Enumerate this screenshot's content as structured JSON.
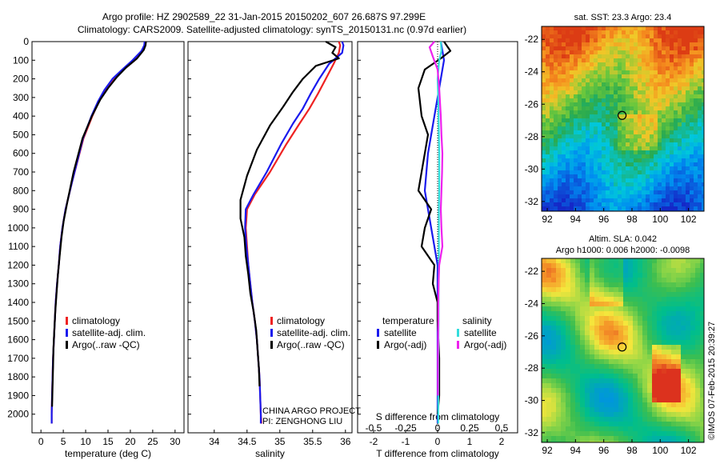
{
  "header": {
    "line1": "Argo profile: HZ 2902589_22 31-Jan-2015 20150202_607 26.687S 97.299E",
    "line2": "Climatology: CARS2009. Satellite-adjusted climatology: synTS_20150131.nc (0.97d earlier)"
  },
  "project": {
    "line1": "CHINA ARGO PROJECT",
    "line2": "PI: ZENGHONG LIU"
  },
  "credit": "©IMOS 07-Feb-2015 20:39:27",
  "colors": {
    "climatology": "#ee2222",
    "satellite": "#1a1aee",
    "argo": "#000000",
    "sal_satellite": "#33dddd",
    "sal_argo": "#ee22ee"
  },
  "chart_data": [
    {
      "type": "line",
      "xlabel": "temperature (deg C)",
      "ylabel": "",
      "xlim": [
        -2,
        32
      ],
      "ylim": [
        2100,
        0
      ],
      "xticks": [
        0,
        5,
        10,
        15,
        20,
        25,
        30
      ],
      "yticks": [
        0,
        100,
        200,
        300,
        400,
        500,
        600,
        700,
        800,
        900,
        1000,
        1100,
        1200,
        1300,
        1400,
        1500,
        1600,
        1700,
        1800,
        1900,
        2000
      ],
      "legend": [
        "climatology",
        "satellite-adj. clim.",
        "Argo(..raw -QC)"
      ],
      "series": [
        {
          "name": "climatology",
          "color": "#ee2222",
          "x": [
            23.4,
            23.3,
            22.8,
            21.0,
            18.5,
            16.5,
            14.6,
            13.0,
            11.5,
            9.5,
            7.0,
            5.5,
            4.8,
            4.3,
            4.0,
            3.6,
            3.3,
            3.1,
            2.9,
            2.7,
            2.6,
            2.5,
            2.4,
            2.4
          ],
          "y": [
            0,
            20,
            50,
            100,
            150,
            200,
            260,
            320,
            400,
            520,
            750,
            900,
            1000,
            1100,
            1200,
            1300,
            1400,
            1500,
            1600,
            1700,
            1800,
            1900,
            2000,
            2050
          ]
        },
        {
          "name": "satellite-adj. clim.",
          "color": "#1a1aee",
          "x": [
            23.2,
            23.1,
            22.5,
            20.5,
            18.2,
            16.0,
            14.2,
            12.8,
            11.3,
            9.4,
            7.0,
            5.5,
            4.8,
            4.3,
            4.0,
            3.6,
            3.3,
            3.1,
            2.9,
            2.7,
            2.6,
            2.5,
            2.4,
            2.4
          ],
          "y": [
            0,
            20,
            50,
            100,
            150,
            200,
            260,
            320,
            400,
            520,
            750,
            900,
            1000,
            1100,
            1200,
            1300,
            1400,
            1500,
            1600,
            1700,
            1800,
            1900,
            2000,
            2050
          ]
        },
        {
          "name": "Argo(..raw -QC)",
          "color": "#000000",
          "x": [
            23.5,
            23.4,
            23.0,
            21.5,
            19.0,
            17.0,
            15.0,
            13.3,
            11.4,
            9.3,
            7.3,
            6.0,
            5.1,
            4.6,
            4.2,
            3.8,
            3.5,
            3.2,
            3.0,
            2.8,
            2.7,
            2.6,
            2.5
          ],
          "y": [
            0,
            20,
            45,
            90,
            140,
            190,
            250,
            310,
            400,
            520,
            700,
            850,
            960,
            1050,
            1150,
            1250,
            1350,
            1450,
            1550,
            1650,
            1750,
            1850,
            1960
          ]
        }
      ]
    },
    {
      "type": "line",
      "xlabel": "salinity",
      "ylabel": "",
      "xlim": [
        33.6,
        36.1
      ],
      "ylim": [
        2100,
        0
      ],
      "xticks": [
        34,
        34.5,
        35,
        35.5,
        36
      ],
      "yticks": [],
      "legend": [
        "climatology",
        "satellite-adj. clim.",
        "Argo(..raw -QC)"
      ],
      "series": [
        {
          "name": "climatology",
          "color": "#ee2222",
          "x": [
            35.9,
            35.92,
            35.9,
            35.82,
            35.7,
            35.58,
            35.45,
            35.3,
            35.1,
            34.85,
            34.62,
            34.5,
            34.48,
            34.5,
            34.52,
            34.55,
            34.58,
            34.62,
            34.65,
            34.67,
            34.69,
            34.7,
            34.71,
            34.72
          ],
          "y": [
            0,
            20,
            60,
            120,
            200,
            280,
            360,
            440,
            550,
            700,
            820,
            900,
            1000,
            1100,
            1200,
            1300,
            1400,
            1500,
            1600,
            1700,
            1800,
            1900,
            2000,
            2050
          ]
        },
        {
          "name": "satellite-adj. clim.",
          "color": "#1a1aee",
          "x": [
            35.95,
            35.97,
            35.95,
            35.75,
            35.6,
            35.47,
            35.35,
            35.2,
            35.02,
            34.8,
            34.6,
            34.48,
            34.47,
            34.49,
            34.52,
            34.55,
            34.58,
            34.62,
            34.65,
            34.67,
            34.69,
            34.7,
            34.71,
            34.71
          ],
          "y": [
            0,
            20,
            60,
            120,
            200,
            280,
            360,
            440,
            550,
            700,
            820,
            900,
            1000,
            1100,
            1200,
            1300,
            1400,
            1500,
            1600,
            1700,
            1800,
            1900,
            2000,
            2050
          ]
        },
        {
          "name": "Argo(..raw -QC)",
          "color": "#000000",
          "x": [
            35.7,
            35.85,
            35.8,
            35.9,
            35.55,
            35.35,
            35.2,
            35.05,
            34.85,
            34.65,
            34.5,
            34.4,
            34.4,
            34.46,
            34.48,
            34.52,
            34.55,
            34.6,
            34.64,
            34.66,
            34.68,
            34.69
          ],
          "y": [
            0,
            30,
            60,
            90,
            130,
            200,
            270,
            350,
            450,
            580,
            720,
            850,
            950,
            1050,
            1150,
            1250,
            1350,
            1450,
            1550,
            1650,
            1750,
            1850
          ]
        }
      ]
    },
    {
      "type": "line",
      "xlabel": "T difference from climatology",
      "xlabel_top": "S difference from climatology",
      "xlim": [
        -2.5,
        2.5
      ],
      "ylim": [
        2100,
        0
      ],
      "xticks": [
        -2,
        -1,
        0,
        1,
        2
      ],
      "top_ticks": [
        "-0.5",
        "-0.25",
        "0",
        "0.25",
        "0.5"
      ],
      "legend_groups": [
        {
          "title": "temperature",
          "items": [
            "satellite",
            "Argo(-adj)"
          ]
        },
        {
          "title": "salinity",
          "items": [
            "satellite",
            "Argo(-adj)"
          ]
        }
      ],
      "series": [
        {
          "name": "temperature satellite",
          "color": "#1a1aee",
          "x": [
            0.1,
            0.15,
            0.2,
            0.1,
            0.0,
            -0.1,
            -0.2,
            -0.3,
            -0.35,
            -0.4,
            -0.3,
            -0.2,
            -0.1,
            0.0,
            0.0,
            0.0,
            0.0,
            0.0,
            0.0,
            0.0
          ],
          "y": [
            0,
            50,
            100,
            200,
            300,
            400,
            500,
            600,
            700,
            800,
            900,
            1000,
            1100,
            1200,
            1300,
            1400,
            1500,
            1700,
            1900,
            2050
          ]
        },
        {
          "name": "temperature Argo(-adj)",
          "color": "#000000",
          "x": [
            0.2,
            0.4,
            0.1,
            -0.4,
            -0.6,
            -0.5,
            -0.3,
            -0.4,
            -0.5,
            -0.6,
            -0.2,
            -0.4,
            -0.5,
            -0.1,
            -0.15,
            0.0,
            0.0,
            0.05,
            0.05,
            0.0
          ],
          "y": [
            0,
            50,
            90,
            150,
            250,
            400,
            500,
            600,
            700,
            800,
            900,
            1000,
            1100,
            1200,
            1300,
            1400,
            1500,
            1700,
            1900,
            2000
          ]
        },
        {
          "name": "salinity satellite",
          "color": "#33dddd",
          "x": [
            0.1,
            0.12,
            0.05,
            0.0,
            0.02,
            0.03,
            0.04,
            0.05,
            0.05,
            0.05,
            0.04,
            0.04,
            0.04,
            0.04,
            0.03,
            0.03,
            0.03,
            0.02,
            0.02,
            0.02
          ],
          "y": [
            0,
            50,
            100,
            200,
            300,
            400,
            500,
            600,
            700,
            800,
            900,
            1000,
            1100,
            1200,
            1300,
            1400,
            1500,
            1700,
            1900,
            2050
          ]
        },
        {
          "name": "salinity Argo(-adj)",
          "color": "#ee22ee",
          "x": [
            -0.1,
            -0.25,
            -0.15,
            0.0,
            0.05,
            0.1,
            0.12,
            0.15,
            0.14,
            0.12,
            0.1,
            0.12,
            0.15,
            0.05,
            0.03,
            0.02,
            0.02,
            0.01,
            0.01
          ],
          "y": [
            0,
            30,
            80,
            150,
            250,
            400,
            500,
            600,
            700,
            800,
            900,
            1000,
            1100,
            1200,
            1300,
            1400,
            1500,
            1700,
            1900
          ]
        }
      ]
    },
    {
      "type": "heatmap",
      "title": "sat. SST: 23.3  Argo: 23.4",
      "xlim": [
        91.6,
        103.1
      ],
      "ylim": [
        -32.6,
        -21.2
      ],
      "xticks": [
        92,
        94,
        96,
        98,
        100,
        102
      ],
      "yticks": [
        -22,
        -24,
        -26,
        -28,
        -30,
        -32
      ],
      "marker": {
        "lon": 97.3,
        "lat": -26.69
      }
    },
    {
      "type": "heatmap",
      "title": "Altim. SLA: 0.042",
      "subtitle": "Argo h1000: 0.006 h2000: -0.0098",
      "xlim": [
        91.6,
        103.1
      ],
      "ylim": [
        -32.6,
        -21.2
      ],
      "xticks": [
        92,
        94,
        96,
        98,
        100,
        102
      ],
      "yticks": [
        -22,
        -24,
        -26,
        -28,
        -30,
        -32
      ],
      "marker": {
        "lon": 97.3,
        "lat": -26.69
      }
    }
  ]
}
